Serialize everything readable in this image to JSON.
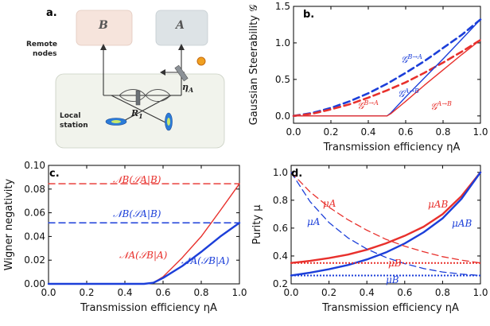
{
  "colors": {
    "red": "#e8302c",
    "blue": "#1c3fd9",
    "box": "#f1f3ec",
    "boxB": "#f6e4dc",
    "boxA": "#dde3e6",
    "grid": "#000000"
  },
  "panel_a": {
    "label": "a.",
    "node_b": "B",
    "node_a": "A",
    "remote_line1": "Remote",
    "remote_line2": "nodes",
    "local_line1": "Local",
    "local_line2": "station",
    "eta_label": "η",
    "eta_sub": "A",
    "r_label": "R",
    "r_sub": "1"
  },
  "chart_data": [
    {
      "panel": "b.",
      "type": "line",
      "xlabel": "Transmission efficiency ηA",
      "ylabel": "Gaussian Steerability 𝒢",
      "xlim": [
        0,
        1
      ],
      "ylim": [
        -0.1,
        1.5
      ],
      "xticks": [
        "0.0",
        "0.2",
        "0.4",
        "0.6",
        "0.8",
        "1.0"
      ],
      "xtick_values": [
        0,
        0.2,
        0.4,
        0.6,
        0.8,
        1.0
      ],
      "yticks": [
        "0.0",
        "0.5",
        "1.0",
        "1.5"
      ],
      "ytick_values": [
        0,
        0.5,
        1.0,
        1.5
      ],
      "series": [
        {
          "name": "𝒢B→A",
          "color": "#1c3fd9",
          "dash": true,
          "width": 2.6,
          "x": [
            0,
            0.1,
            0.2,
            0.3,
            0.4,
            0.5,
            0.6,
            0.7,
            0.8,
            0.9,
            1.0
          ],
          "y": [
            0,
            0.04,
            0.11,
            0.2,
            0.31,
            0.44,
            0.59,
            0.75,
            0.93,
            1.11,
            1.32
          ]
        },
        {
          "name": "𝒢B→A",
          "color": "#e8302c",
          "dash": true,
          "width": 2.6,
          "x": [
            0,
            0.1,
            0.2,
            0.3,
            0.4,
            0.5,
            0.6,
            0.7,
            0.8,
            0.9,
            1.0
          ],
          "y": [
            0,
            0.03,
            0.09,
            0.16,
            0.25,
            0.35,
            0.46,
            0.59,
            0.73,
            0.88,
            1.04
          ]
        },
        {
          "name": "𝒢A→B",
          "color": "#1c3fd9",
          "dash": false,
          "width": 1.4,
          "x": [
            0,
            0.5,
            0.52,
            0.6,
            0.7,
            0.8,
            0.9,
            1.0
          ],
          "y": [
            0,
            0,
            0.04,
            0.26,
            0.52,
            0.78,
            1.05,
            1.32
          ]
        },
        {
          "name": "𝒢A→B",
          "color": "#e8302c",
          "dash": false,
          "width": 1.4,
          "x": [
            0,
            0.5,
            0.52,
            0.6,
            0.7,
            0.8,
            0.9,
            1.0
          ],
          "y": [
            0,
            0,
            0.03,
            0.2,
            0.42,
            0.63,
            0.84,
            1.04
          ]
        }
      ],
      "annotations": [
        {
          "text": "𝒢",
          "sup": "B→A",
          "color": "#1c3fd9"
        },
        {
          "text": "𝒢",
          "sup": "A→B",
          "color": "#1c3fd9"
        },
        {
          "text": "𝒢",
          "sup": "B→A",
          "color": "#e8302c"
        },
        {
          "text": "𝒢",
          "sup": "A→B",
          "color": "#e8302c"
        }
      ]
    },
    {
      "panel": "c.",
      "type": "line",
      "xlabel": "Transmission efficiency ηA",
      "ylabel": "Wigner negativity",
      "xlim": [
        0,
        1
      ],
      "ylim": [
        0,
        0.1
      ],
      "xticks": [
        "0.0",
        "0.2",
        "0.4",
        "0.6",
        "0.8",
        "1.0"
      ],
      "xtick_values": [
        0,
        0.2,
        0.4,
        0.6,
        0.8,
        1.0
      ],
      "yticks": [
        "0.00",
        "0.02",
        "0.04",
        "0.06",
        "0.08",
        "0.10"
      ],
      "ytick_values": [
        0,
        0.02,
        0.04,
        0.06,
        0.08,
        0.1
      ],
      "series": [
        {
          "name": "𝒩B(𝒮A|B)",
          "color": "#e8302c",
          "dash": true,
          "width": 1.4,
          "x": [
            0,
            1.0
          ],
          "y": [
            0.0845,
            0.0845
          ]
        },
        {
          "name": "𝒩B(𝒮A|B)",
          "color": "#1c3fd9",
          "dash": true,
          "width": 1.4,
          "x": [
            0,
            1.0
          ],
          "y": [
            0.0515,
            0.0515
          ]
        },
        {
          "name": "𝒩A(𝒮B|A)",
          "color": "#e8302c",
          "dash": false,
          "width": 1.4,
          "x": [
            0,
            0.5,
            0.55,
            0.6,
            0.7,
            0.8,
            0.9,
            1.0
          ],
          "y": [
            0,
            0,
            0.001,
            0.006,
            0.022,
            0.04,
            0.062,
            0.0845
          ]
        },
        {
          "name": "𝒩A(𝒮B|A)",
          "color": "#1c3fd9",
          "dash": false,
          "width": 2.4,
          "x": [
            0,
            0.5,
            0.55,
            0.6,
            0.7,
            0.8,
            0.9,
            1.0
          ],
          "y": [
            0,
            0,
            0.001,
            0.005,
            0.015,
            0.027,
            0.04,
            0.0515
          ]
        }
      ],
      "annotations": [
        {
          "text": "𝒩B(𝒮A|B)",
          "color": "#e8302c"
        },
        {
          "text": "𝒩B(𝒮A|B)",
          "color": "#1c3fd9"
        },
        {
          "text": "𝒩A(𝒮B|A)",
          "color": "#e8302c"
        },
        {
          "text": "𝒩A(𝒮B|A)",
          "color": "#1c3fd9"
        }
      ]
    },
    {
      "panel": "d.",
      "type": "line",
      "xlabel": "Transmission efficiency ηA",
      "ylabel": "Purity μ",
      "xlim": [
        0,
        1
      ],
      "ylim": [
        0.2,
        1.05
      ],
      "xticks": [
        "0.0",
        "0.2",
        "0.4",
        "0.6",
        "0.8",
        "1.0"
      ],
      "xtick_values": [
        0,
        0.2,
        0.4,
        0.6,
        0.8,
        1.0
      ],
      "yticks": [
        "0.2",
        "0.4",
        "0.6",
        "0.8",
        "1.0"
      ],
      "ytick_values": [
        0.2,
        0.4,
        0.6,
        0.8,
        1.0
      ],
      "series": [
        {
          "name": "μAB",
          "color": "#e8302c",
          "dash": false,
          "width": 2.4,
          "x": [
            0,
            0.1,
            0.2,
            0.3,
            0.4,
            0.5,
            0.6,
            0.7,
            0.8,
            0.9,
            1.0
          ],
          "y": [
            0.35,
            0.365,
            0.385,
            0.41,
            0.445,
            0.49,
            0.545,
            0.61,
            0.7,
            0.83,
            1.0
          ]
        },
        {
          "name": "μAB",
          "color": "#1c3fd9",
          "dash": false,
          "width": 2.4,
          "x": [
            0,
            0.1,
            0.2,
            0.3,
            0.4,
            0.5,
            0.6,
            0.7,
            0.8,
            0.9,
            1.0
          ],
          "y": [
            0.26,
            0.28,
            0.305,
            0.335,
            0.375,
            0.425,
            0.49,
            0.57,
            0.67,
            0.81,
            1.0
          ]
        },
        {
          "name": "μA",
          "color": "#e8302c",
          "dash": true,
          "width": 1.3,
          "x": [
            0,
            0.1,
            0.2,
            0.3,
            0.4,
            0.5,
            0.6,
            0.7,
            0.8,
            0.9,
            1.0
          ],
          "y": [
            1.0,
            0.86,
            0.75,
            0.66,
            0.585,
            0.52,
            0.47,
            0.43,
            0.395,
            0.37,
            0.35
          ]
        },
        {
          "name": "μA",
          "color": "#1c3fd9",
          "dash": true,
          "width": 1.3,
          "x": [
            0,
            0.1,
            0.2,
            0.3,
            0.4,
            0.5,
            0.6,
            0.7,
            0.8,
            0.9,
            1.0
          ],
          "y": [
            1.0,
            0.79,
            0.64,
            0.53,
            0.45,
            0.39,
            0.345,
            0.31,
            0.285,
            0.27,
            0.26
          ]
        },
        {
          "name": "μB",
          "color": "#e8302c",
          "dash": true,
          "dotted": true,
          "width": 2.0,
          "x": [
            0,
            1.0
          ],
          "y": [
            0.35,
            0.35
          ]
        },
        {
          "name": "μB",
          "color": "#1c3fd9",
          "dash": true,
          "dotted": true,
          "width": 2.0,
          "x": [
            0,
            1.0
          ],
          "y": [
            0.26,
            0.26
          ]
        }
      ],
      "annotations": [
        {
          "text": "μA",
          "color": "#e8302c"
        },
        {
          "text": "μA",
          "color": "#1c3fd9"
        },
        {
          "text": "μAB",
          "color": "#e8302c"
        },
        {
          "text": "μAB",
          "color": "#1c3fd9"
        },
        {
          "text": "μB",
          "color": "#e8302c"
        },
        {
          "text": "μB",
          "color": "#1c3fd9"
        }
      ]
    }
  ]
}
